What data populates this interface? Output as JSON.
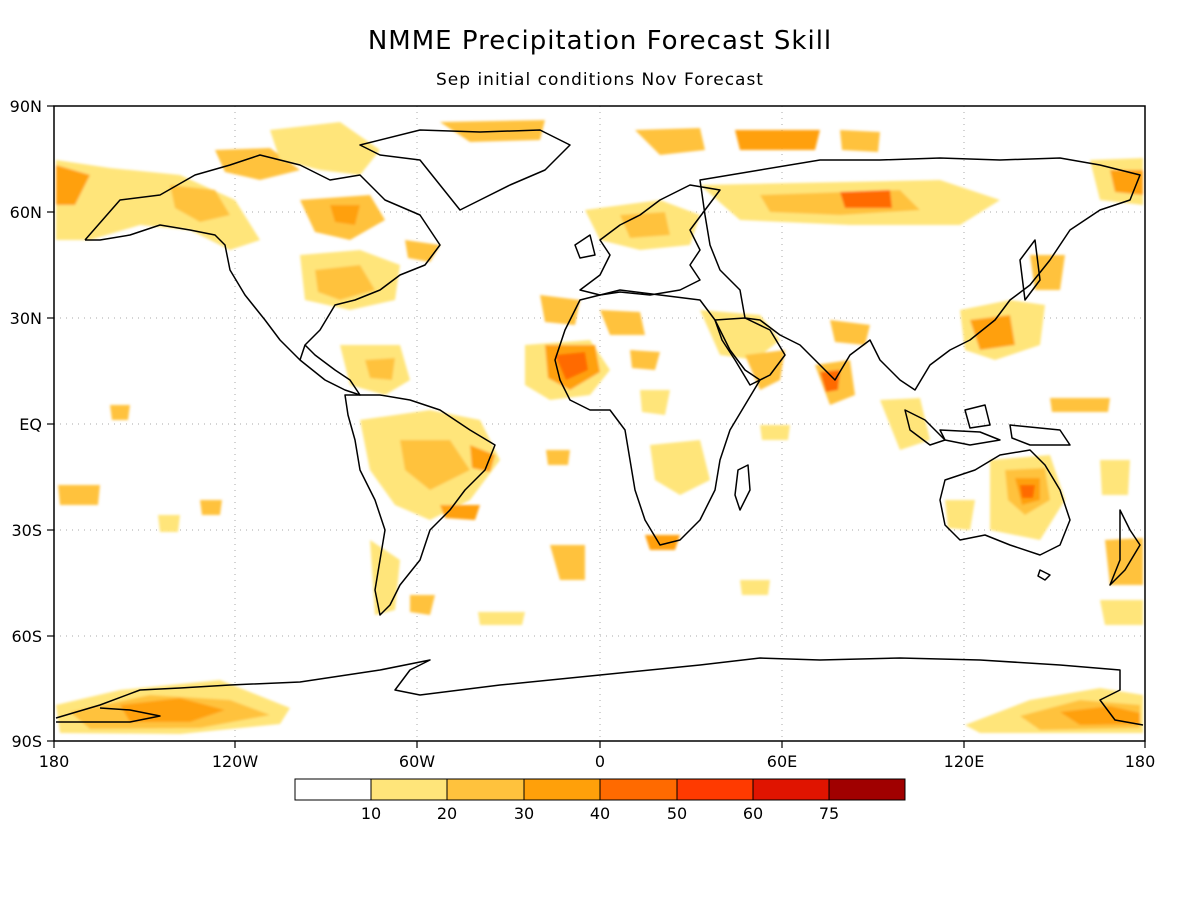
{
  "title": "NMME Precipitation Forecast Skill",
  "subtitle": "Sep initial conditions  Nov Forecast",
  "map": {
    "lat_labels": [
      "90N",
      "60N",
      "30N",
      "EQ",
      "30S",
      "60S",
      "90S"
    ],
    "lon_labels": [
      "180",
      "120W",
      "60W",
      "0",
      "60E",
      "120E",
      "180"
    ]
  },
  "colorbar": {
    "bins": [
      "#ffffff",
      "#ffe57a",
      "#ffc23d",
      "#ffa00a",
      "#ff6a00",
      "#ff3a00",
      "#e01400",
      "#a00000"
    ],
    "labels": [
      "10",
      "20",
      "30",
      "40",
      "50",
      "60",
      "75"
    ]
  },
  "skill_patches": [
    {
      "region": "Northwest Africa / Sahel",
      "level": 5
    },
    {
      "region": "Arabian Sea coast / India",
      "level": 4
    },
    {
      "region": "Eastern Australia",
      "level": 4
    },
    {
      "region": "Western Siberia",
      "level": 4
    },
    {
      "region": "South Pacific near Antarctica",
      "level": 3
    },
    {
      "region": "Southern Ocean near Ross Sea",
      "level": 3
    },
    {
      "region": "Southeast China",
      "level": 4
    },
    {
      "region": "Eastern Brazil",
      "level": 3
    },
    {
      "region": "Northwest Canada / Alaska",
      "level": 3
    },
    {
      "region": "Eastern North America",
      "level": 3
    }
  ]
}
